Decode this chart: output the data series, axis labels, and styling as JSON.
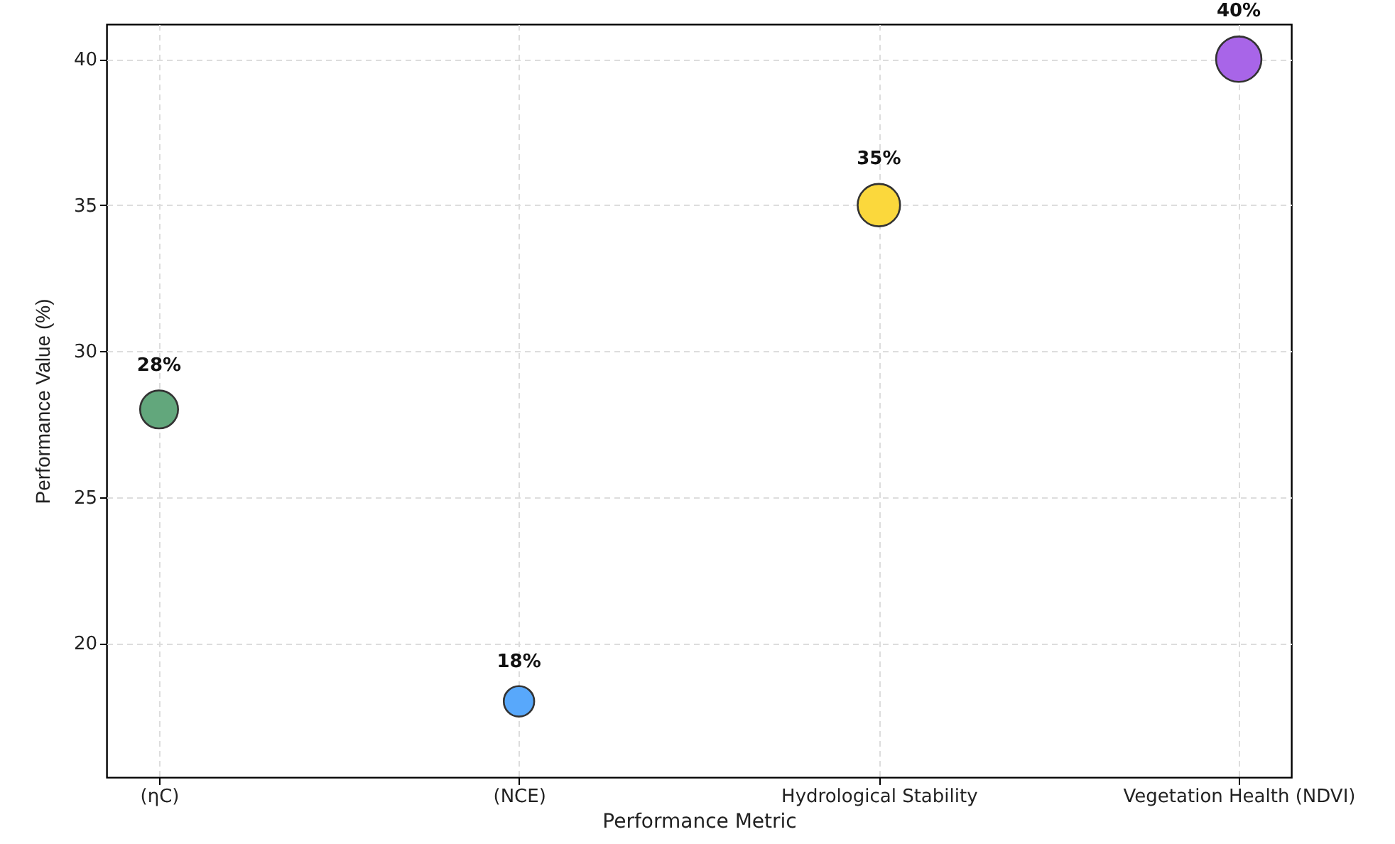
{
  "chart_data": {
    "type": "bubble",
    "xlabel": "Performance Metric",
    "ylabel": "Performance Value (%)",
    "categories": [
      "(ηC)",
      "(NCE)",
      "Hydrological Stability",
      "Vegetation Health (NDVI)"
    ],
    "values": [
      28,
      18,
      35,
      40
    ],
    "sizes": [
      0.7,
      0.45,
      0.875,
      1
    ],
    "colors": [
      "#62a77c",
      "#58a8fb",
      "#fbd83c",
      "#a865e8"
    ],
    "value_labels": [
      "28%",
      "18%",
      "35%",
      "40%"
    ],
    "ylim": [
      15.4,
      41.2
    ],
    "yticks": [
      20,
      25,
      30,
      35,
      40
    ],
    "grid": true
  }
}
